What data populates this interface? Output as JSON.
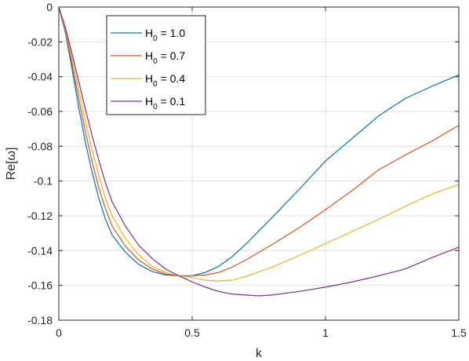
{
  "chart_data": {
    "type": "line",
    "xlabel": "k",
    "ylabel": "Re[ω]",
    "xlim": [
      0,
      1.5
    ],
    "ylim": [
      -0.18,
      0
    ],
    "xticks": [
      0,
      0.5,
      1,
      1.5
    ],
    "xtick_labels": [
      "0",
      "0.5",
      "1",
      "1.5"
    ],
    "yticks": [
      0,
      -0.02,
      -0.04,
      -0.06,
      -0.08,
      -0.1,
      -0.12,
      -0.14,
      -0.16,
      -0.18
    ],
    "ytick_labels": [
      "0",
      "-0.02",
      "-0.04",
      "-0.06",
      "-0.08",
      "-0.1",
      "-0.12",
      "-0.14",
      "-0.16",
      "-0.18"
    ],
    "grid": true,
    "legend_position": "top-left",
    "series": [
      {
        "name": "H_0 = 1.0",
        "legend_main": "H",
        "legend_sub": "0",
        "legend_rest": " = 1.0",
        "color": "#0072BD",
        "x": [
          0,
          0.025,
          0.05,
          0.075,
          0.1,
          0.125,
          0.15,
          0.175,
          0.2,
          0.25,
          0.3,
          0.35,
          0.4,
          0.45,
          0.5,
          0.55,
          0.6,
          0.65,
          0.7,
          0.8,
          0.9,
          1.0,
          1.1,
          1.2,
          1.3,
          1.4,
          1.5
        ],
        "y": [
          0,
          -0.015,
          -0.036,
          -0.058,
          -0.078,
          -0.095,
          -0.11,
          -0.122,
          -0.131,
          -0.141,
          -0.148,
          -0.152,
          -0.154,
          -0.1545,
          -0.1545,
          -0.1525,
          -0.149,
          -0.1435,
          -0.1365,
          -0.121,
          -0.105,
          -0.0885,
          -0.0755,
          -0.0625,
          -0.0525,
          -0.0455,
          -0.039
        ]
      },
      {
        "name": "H_0 = 0.7",
        "legend_main": "H",
        "legend_sub": "0",
        "legend_rest": " = 0.7",
        "color": "#D95319",
        "x": [
          0,
          0.025,
          0.05,
          0.075,
          0.1,
          0.125,
          0.15,
          0.175,
          0.2,
          0.25,
          0.3,
          0.35,
          0.4,
          0.45,
          0.5,
          0.55,
          0.6,
          0.65,
          0.7,
          0.8,
          0.9,
          1.0,
          1.1,
          1.2,
          1.3,
          1.4,
          1.5
        ],
        "y": [
          0,
          -0.014,
          -0.033,
          -0.053,
          -0.072,
          -0.089,
          -0.104,
          -0.116,
          -0.126,
          -0.1375,
          -0.1455,
          -0.1505,
          -0.1535,
          -0.1545,
          -0.1545,
          -0.154,
          -0.1525,
          -0.1495,
          -0.1455,
          -0.1365,
          -0.127,
          -0.1165,
          -0.1055,
          -0.0935,
          -0.085,
          -0.077,
          -0.068
        ]
      },
      {
        "name": "H_0 = 0.4",
        "legend_main": "H",
        "legend_sub": "0",
        "legend_rest": " = 0.4",
        "color": "#EDB120",
        "x": [
          0,
          0.025,
          0.05,
          0.075,
          0.1,
          0.125,
          0.15,
          0.175,
          0.2,
          0.25,
          0.3,
          0.35,
          0.4,
          0.45,
          0.5,
          0.55,
          0.6,
          0.65,
          0.7,
          0.8,
          0.9,
          1.0,
          1.1,
          1.2,
          1.3,
          1.4,
          1.5
        ],
        "y": [
          0,
          -0.013,
          -0.03,
          -0.048,
          -0.066,
          -0.082,
          -0.097,
          -0.11,
          -0.12,
          -0.133,
          -0.1425,
          -0.149,
          -0.1525,
          -0.1545,
          -0.1555,
          -0.157,
          -0.1575,
          -0.157,
          -0.155,
          -0.1495,
          -0.143,
          -0.136,
          -0.129,
          -0.122,
          -0.1145,
          -0.1075,
          -0.102
        ]
      },
      {
        "name": "H_0 = 0.1",
        "legend_main": "H",
        "legend_sub": "0",
        "legend_rest": " = 0.1",
        "color": "#7E2F8E",
        "x": [
          0,
          0.025,
          0.05,
          0.075,
          0.1,
          0.125,
          0.15,
          0.175,
          0.2,
          0.25,
          0.3,
          0.35,
          0.4,
          0.45,
          0.5,
          0.55,
          0.6,
          0.65,
          0.7,
          0.75,
          0.8,
          0.9,
          1.0,
          1.1,
          1.2,
          1.3,
          1.4,
          1.5
        ],
        "y": [
          0,
          -0.012,
          -0.027,
          -0.043,
          -0.059,
          -0.074,
          -0.088,
          -0.101,
          -0.112,
          -0.126,
          -0.137,
          -0.1445,
          -0.1505,
          -0.1545,
          -0.158,
          -0.161,
          -0.1635,
          -0.165,
          -0.1655,
          -0.166,
          -0.1655,
          -0.1635,
          -0.161,
          -0.158,
          -0.1545,
          -0.1505,
          -0.144,
          -0.138
        ]
      }
    ]
  }
}
